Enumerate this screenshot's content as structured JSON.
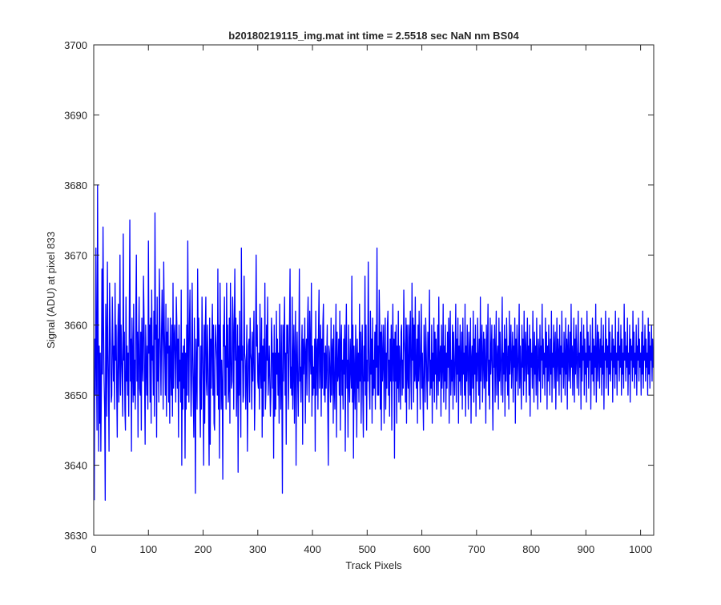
{
  "chart_data": {
    "type": "line",
    "title": "b20180219115_img.mat int time = 2.5518 sec  NaN nm BS04",
    "xlabel": "Track Pixels",
    "ylabel": "Signal (ADU) at pixel 833",
    "xlim": [
      0,
      1024
    ],
    "ylim": [
      3630,
      3700
    ],
    "xticks": [
      0,
      100,
      200,
      300,
      400,
      500,
      600,
      700,
      800,
      900,
      1000
    ],
    "yticks": [
      3630,
      3640,
      3650,
      3660,
      3670,
      3680,
      3690,
      3700
    ],
    "grid": false,
    "series_color": "#0000ff",
    "x_start": 1,
    "x_step": 1,
    "series": [
      {
        "values": [
          3635,
          3658,
          3650,
          3671,
          3655,
          3645,
          3680,
          3660,
          3642,
          3657,
          3646,
          3656,
          3642,
          3651,
          3668,
          3653,
          3674,
          3660,
          3652,
          3648,
          3635,
          3663,
          3658,
          3647,
          3669,
          3657,
          3651,
          3642,
          3666,
          3660,
          3655,
          3649,
          3650,
          3664,
          3658,
          3652,
          3657,
          3648,
          3666,
          3655,
          3660,
          3651,
          3644,
          3658,
          3663,
          3649,
          3656,
          3670,
          3650,
          3660,
          3656,
          3652,
          3647,
          3673,
          3655,
          3659,
          3648,
          3645,
          3664,
          3652,
          3657,
          3650,
          3656,
          3647,
          3661,
          3675,
          3652,
          3658,
          3642,
          3661,
          3655,
          3649,
          3663,
          3650,
          3655,
          3648,
          3662,
          3670,
          3652,
          3659,
          3644,
          3657,
          3664,
          3651,
          3650,
          3659,
          3645,
          3661,
          3655,
          3652,
          3667,
          3661,
          3652,
          3643,
          3660,
          3655,
          3650,
          3657,
          3648,
          3672,
          3656,
          3660,
          3649,
          3661,
          3646,
          3665,
          3655,
          3657,
          3650,
          3662,
          3647,
          3676,
          3658,
          3660,
          3644,
          3664,
          3652,
          3658,
          3649,
          3668,
          3661,
          3655,
          3650,
          3659,
          3665,
          3658,
          3648,
          3669,
          3660,
          3655,
          3650,
          3663,
          3647,
          3659,
          3656,
          3661,
          3649,
          3657,
          3646,
          3661,
          3654,
          3650,
          3660,
          3647,
          3666,
          3651,
          3658,
          3660,
          3655,
          3649,
          3664,
          3660,
          3651,
          3658,
          3644,
          3660,
          3652,
          3655,
          3649,
          3665,
          3640,
          3656,
          3648,
          3657,
          3651,
          3658,
          3641,
          3656,
          3648,
          3660,
          3650,
          3672,
          3657,
          3649,
          3660,
          3665,
          3655,
          3647,
          3652,
          3666,
          3656,
          3650,
          3644,
          3661,
          3651,
          3636,
          3658,
          3654,
          3648,
          3668,
          3657,
          3661,
          3656,
          3650,
          3644,
          3657,
          3648,
          3664,
          3657,
          3652,
          3640,
          3660,
          3646,
          3659,
          3664,
          3652,
          3650,
          3660,
          3655,
          3649,
          3640,
          3661,
          3643,
          3658,
          3651,
          3658,
          3663,
          3650,
          3660,
          3646,
          3645,
          3657,
          3660,
          3657,
          3655,
          3650,
          3668,
          3648,
          3660,
          3641,
          3666,
          3657,
          3648,
          3655,
          3651,
          3638,
          3660,
          3657,
          3664,
          3650,
          3657,
          3648,
          3666,
          3654,
          3660,
          3649,
          3651,
          3661,
          3646,
          3666,
          3656,
          3651,
          3652,
          3664,
          3660,
          3648,
          3659,
          3668,
          3655,
          3661,
          3647,
          3653,
          3660,
          3639,
          3657,
          3650,
          3662,
          3652,
          3644,
          3671,
          3655,
          3657,
          3649,
          3650,
          3667,
          3656,
          3655,
          3648,
          3654,
          3660,
          3642,
          3650,
          3657,
          3658,
          3649,
          3661,
          3656,
          3655,
          3648,
          3659,
          3652,
          3657,
          3662,
          3645,
          3650,
          3658,
          3670,
          3657,
          3660,
          3652,
          3651,
          3656,
          3648,
          3663,
          3654,
          3651,
          3661,
          3644,
          3657,
          3647,
          3658,
          3652,
          3666,
          3648,
          3651,
          3660,
          3655,
          3664,
          3650,
          3653,
          3657,
          3652,
          3647,
          3650,
          3661,
          3658,
          3651,
          3656,
          3641,
          3660,
          3647,
          3656,
          3648,
          3662,
          3653,
          3658,
          3650,
          3656,
          3646,
          3663,
          3653,
          3648,
          3660,
          3651,
          3636,
          3660,
          3652,
          3658,
          3664,
          3650,
          3656,
          3643,
          3660,
          3656,
          3660,
          3648,
          3653,
          3660,
          3668,
          3651,
          3654,
          3650,
          3664,
          3648,
          3654,
          3660,
          3646,
          3655,
          3662,
          3640,
          3655,
          3659,
          3652,
          3647,
          3655,
          3668,
          3652,
          3654,
          3649,
          3656,
          3660,
          3643,
          3658,
          3653,
          3656,
          3661,
          3646,
          3656,
          3658,
          3650,
          3660,
          3664,
          3655,
          3649,
          3662,
          3656,
          3653,
          3666,
          3647,
          3657,
          3650,
          3654,
          3651,
          3658,
          3642,
          3662,
          3650,
          3656,
          3658,
          3648,
          3659,
          3665,
          3651,
          3655,
          3660,
          3647,
          3658,
          3651,
          3660,
          3663,
          3650,
          3656,
          3649,
          3657,
          3651,
          3655,
          3660,
          3648,
          3640,
          3657,
          3656,
          3652,
          3649,
          3661,
          3650,
          3656,
          3658,
          3646,
          3660,
          3651,
          3648,
          3656,
          3663,
          3644,
          3659,
          3652,
          3653,
          3658,
          3650,
          3662,
          3645,
          3657,
          3660,
          3650,
          3655,
          3648,
          3658,
          3653,
          3660,
          3642,
          3657,
          3663,
          3651,
          3655,
          3644,
          3660,
          3652,
          3649,
          3658,
          3654,
          3651,
          3667,
          3649,
          3660,
          3641,
          3657,
          3653,
          3648,
          3660,
          3655,
          3644,
          3658,
          3651,
          3656,
          3649,
          3663,
          3652,
          3659,
          3646,
          3655,
          3660,
          3650,
          3644,
          3657,
          3652,
          3667,
          3650,
          3660,
          3645,
          3655,
          3652,
          3669,
          3657,
          3651,
          3648,
          3662,
          3653,
          3658,
          3646,
          3661,
          3650,
          3655,
          3651,
          3659,
          3648,
          3660,
          3654,
          3671,
          3650,
          3657,
          3650,
          3665,
          3660,
          3648,
          3659,
          3645,
          3660,
          3652,
          3655,
          3660,
          3646,
          3655,
          3661,
          3648,
          3656,
          3651,
          3660,
          3662,
          3650,
          3655,
          3647,
          3658,
          3652,
          3660,
          3645,
          3656,
          3663,
          3652,
          3658,
          3641,
          3659,
          3652,
          3660,
          3646,
          3657,
          3651,
          3662,
          3649,
          3657,
          3654,
          3648,
          3659,
          3660,
          3650,
          3655,
          3651,
          3665,
          3658,
          3656,
          3649,
          3661,
          3646,
          3660,
          3653,
          3651,
          3660,
          3648,
          3658,
          3662,
          3652,
          3648,
          3666,
          3655,
          3661,
          3649,
          3660,
          3652,
          3664,
          3653,
          3651,
          3658,
          3646,
          3660,
          3652,
          3662,
          3655,
          3648,
          3657,
          3663,
          3651,
          3656,
          3650,
          3645,
          3660,
          3655,
          3649,
          3661,
          3657,
          3652,
          3648,
          3659,
          3652,
          3657,
          3665,
          3650,
          3655,
          3651,
          3660,
          3646,
          3656,
          3652,
          3661,
          3649,
          3659,
          3653,
          3658,
          3648,
          3654,
          3660,
          3650,
          3664,
          3652,
          3655,
          3657,
          3647,
          3660,
          3651,
          3654,
          3663,
          3649,
          3657,
          3652,
          3660,
          3648,
          3656,
          3651,
          3659,
          3654,
          3661,
          3646,
          3657,
          3662,
          3650,
          3655,
          3652,
          3660,
          3648,
          3659,
          3654,
          3650,
          3656,
          3663,
          3649,
          3658,
          3653,
          3661,
          3646,
          3657,
          3652,
          3660,
          3650,
          3655,
          3659,
          3648,
          3661,
          3653,
          3656,
          3650,
          3663,
          3647,
          3657,
          3652,
          3660,
          3654,
          3648,
          3659,
          3656,
          3650,
          3661,
          3646,
          3655,
          3657,
          3651,
          3662,
          3649,
          3658,
          3653,
          3660,
          3647,
          3656,
          3652,
          3661,
          3655,
          3650,
          3658,
          3648,
          3664,
          3652,
          3656,
          3660,
          3649,
          3655,
          3659,
          3651,
          3658,
          3654,
          3646,
          3660,
          3652,
          3657,
          3663,
          3650,
          3655,
          3648,
          3661,
          3653,
          3656,
          3660,
          3651,
          3645,
          3658,
          3654,
          3660,
          3649,
          3656,
          3662,
          3650,
          3655,
          3657,
          3648,
          3661,
          3652,
          3659,
          3654,
          3650,
          3657,
          3664,
          3649,
          3656,
          3653,
          3660,
          3647,
          3658,
          3652,
          3661,
          3655,
          3650,
          3657,
          3648,
          3662,
          3653,
          3656,
          3660,
          3651,
          3655,
          3659,
          3649,
          3657,
          3654,
          3661,
          3646,
          3658,
          3652,
          3660,
          3655,
          3650,
          3656,
          3663,
          3651,
          3657,
          3653,
          3648,
          3660,
          3654,
          3658,
          3650,
          3662,
          3652,
          3656,
          3659,
          3649,
          3655,
          3661,
          3653,
          3657,
          3650,
          3660,
          3647,
          3658,
          3654,
          3656,
          3651,
          3662,
          3655,
          3649,
          3659,
          3653,
          3657,
          3650,
          3661,
          3654,
          3648,
          3658,
          3656,
          3652,
          3660,
          3649,
          3657,
          3655,
          3663,
          3651,
          3658,
          3653,
          3656,
          3650,
          3661,
          3654,
          3659,
          3648,
          3657,
          3652,
          3660,
          3655,
          3650,
          3658,
          3653,
          3662,
          3649,
          3656,
          3654,
          3660,
          3651,
          3657,
          3659,
          3648,
          3655,
          3661,
          3652,
          3658,
          3656,
          3650,
          3660,
          3653,
          3657,
          3649,
          3662,
          3654,
          3656,
          3651,
          3659,
          3655,
          3650,
          3661,
          3653,
          3658,
          3648,
          3657,
          3660,
          3652,
          3655,
          3659,
          3651,
          3663,
          3654,
          3657,
          3650,
          3656,
          3661,
          3649,
          3658,
          3653,
          3660,
          3655,
          3651,
          3657,
          3662,
          3650,
          3656,
          3654,
          3659,
          3648,
          3661,
          3652,
          3657,
          3655,
          3660,
          3650,
          3658,
          3653,
          3656,
          3649,
          3662,
          3654,
          3659,
          3651,
          3657,
          3655,
          3660,
          3648,
          3656,
          3653,
          3661,
          3652,
          3658,
          3650,
          3657,
          3654,
          3663,
          3649,
          3655,
          3660,
          3652,
          3659,
          3656,
          3651,
          3658,
          3654,
          3661,
          3650,
          3657,
          3653,
          3660,
          3648,
          3656,
          3655,
          3662,
          3651,
          3658,
          3654,
          3657,
          3650,
          3661,
          3653,
          3659,
          3652,
          3656,
          3655,
          3660,
          3649,
          3658,
          3654,
          3657,
          3651,
          3662,
          3653,
          3656,
          3650,
          3659,
          3655,
          3661,
          3652,
          3657,
          3654,
          3660,
          3650,
          3658,
          3653,
          3656,
          3651,
          3663,
          3655,
          3659,
          3652,
          3657,
          3654,
          3661,
          3650,
          3656,
          3653,
          3660,
          3649,
          3658,
          3655,
          3657,
          3652,
          3662,
          3654,
          3659,
          3651,
          3656,
          3653,
          3660,
          3650,
          3657,
          3655,
          3661,
          3652,
          3658,
          3654,
          3656,
          3650,
          3659,
          3653,
          3662,
          3651,
          3657,
          3655,
          3660,
          3652,
          3658,
          3654,
          3656,
          3650,
          3661,
          3653,
          3659,
          3651,
          3657,
          3655,
          3660,
          3652,
          3658,
          3654,
          3656,
          3650,
          3662,
          3653,
          3659,
          3651,
          3657,
          3655,
          3660,
          3652,
          3658,
          3654,
          3656,
          3650,
          3661,
          3653,
          3659,
          3651,
          3657,
          3655,
          3660,
          3652,
          3658,
          3654,
          3656,
          3650,
          3649
        ]
      }
    ]
  }
}
